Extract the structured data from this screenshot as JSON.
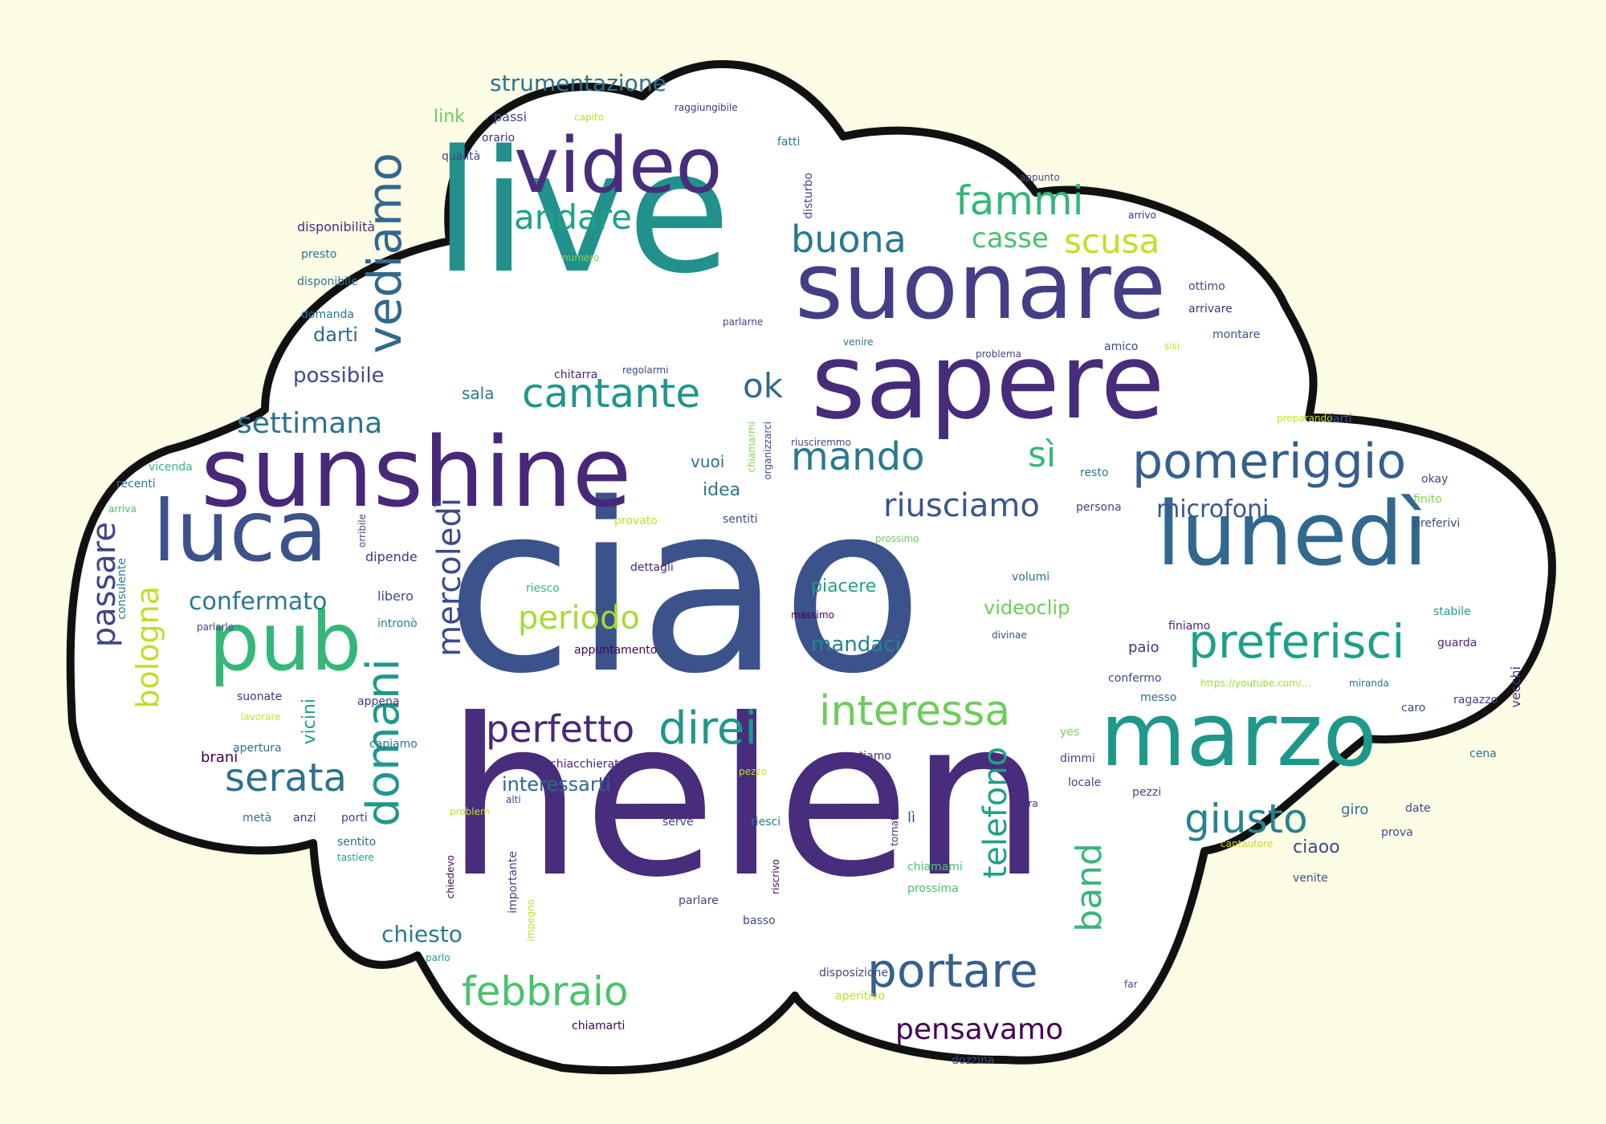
{
  "palette": {
    "background": "#fdfde6",
    "cloud_fill": "#ffffff",
    "cloud_outline": "#111111",
    "viridis_dark": "#46337e",
    "viridis_blue": "#365c8d",
    "viridis_teal": "#277f8e",
    "viridis_green": "#1fa187",
    "viridis_lightgreen": "#4ac16d",
    "viridis_lime": "#a0da39"
  },
  "words": [
    {
      "text": "ciao",
      "color": "#3b528b"
    },
    {
      "text": "helen",
      "color": "#472d7b"
    },
    {
      "text": "live",
      "color": "#21918c"
    },
    {
      "text": "sunshine",
      "color": "#482878"
    },
    {
      "text": "sapere",
      "color": "#472c7a"
    },
    {
      "text": "suonare",
      "color": "#433e85"
    },
    {
      "text": "marzo",
      "color": "#1f988b"
    },
    {
      "text": "lunedì",
      "color": "#31688e"
    },
    {
      "text": "luca",
      "color": "#3b528b"
    },
    {
      "text": "pub",
      "color": "#35b779"
    },
    {
      "text": "video",
      "color": "#472d7b"
    },
    {
      "text": "vediamo",
      "color": "#31688e"
    },
    {
      "text": "pomeriggio",
      "color": "#355f8d"
    },
    {
      "text": "preferisci",
      "color": "#1f9e89"
    },
    {
      "text": "domani",
      "color": "#1f988b"
    },
    {
      "text": "portare",
      "color": "#355f8d"
    },
    {
      "text": "direi",
      "color": "#1f988b"
    },
    {
      "text": "interessa",
      "color": "#6ccd5a"
    },
    {
      "text": "cantante",
      "color": "#1f968b"
    },
    {
      "text": "mando",
      "color": "#2a788e"
    },
    {
      "text": "fammi",
      "color": "#35b779"
    },
    {
      "text": "buona",
      "color": "#2a788e"
    },
    {
      "text": "andare",
      "color": "#1fa187"
    },
    {
      "text": "scusa",
      "color": "#c2df23"
    },
    {
      "text": "casse",
      "color": "#4ac16d"
    },
    {
      "text": "ok",
      "color": "#31688e"
    },
    {
      "text": "sì",
      "color": "#35b779"
    },
    {
      "text": "riusciamo",
      "color": "#39568c"
    },
    {
      "text": "microfoni",
      "color": "#39568c"
    },
    {
      "text": "settimana",
      "color": "#2c728e"
    },
    {
      "text": "periodo",
      "color": "#a5db36"
    },
    {
      "text": "confermato",
      "color": "#2a788e"
    },
    {
      "text": "passare",
      "color": "#414487"
    },
    {
      "text": "bologna",
      "color": "#bddf26"
    },
    {
      "text": "mercoledì",
      "color": "#3e4a89"
    },
    {
      "text": "serata",
      "color": "#2c728e"
    },
    {
      "text": "perfetto",
      "color": "#482878"
    },
    {
      "text": "giusto",
      "color": "#25848e"
    },
    {
      "text": "febbraio",
      "color": "#4ac16d"
    },
    {
      "text": "pensavamo",
      "color": "#440154"
    },
    {
      "text": "band",
      "color": "#35b779"
    },
    {
      "text": "telefono",
      "color": "#1fa187"
    },
    {
      "text": "strumentazione",
      "color": "#2c728e"
    },
    {
      "text": "possibile",
      "color": "#3e4a89"
    },
    {
      "text": "darti",
      "color": "#31688e"
    },
    {
      "text": "mandaci",
      "color": "#25848e"
    },
    {
      "text": "videoclip",
      "color": "#6ccd5a"
    },
    {
      "text": "piacere",
      "color": "#1fa187"
    },
    {
      "text": "chiesto",
      "color": "#2a788e"
    },
    {
      "text": "interessarti",
      "color": "#31688e"
    },
    {
      "text": "idea",
      "color": "#2a788e"
    },
    {
      "text": "vuoi",
      "color": "#2c728e"
    },
    {
      "text": "sala",
      "color": "#2a788e"
    },
    {
      "text": "link",
      "color": "#6ccd5a"
    },
    {
      "text": "passi",
      "color": "#414487"
    },
    {
      "text": "capito",
      "color": "#c2df23"
    },
    {
      "text": "raggiungibile",
      "color": "#46327e"
    },
    {
      "text": "orario",
      "color": "#472d7b"
    },
    {
      "text": "qualità",
      "color": "#404688"
    },
    {
      "text": "fatti",
      "color": "#2a788e"
    },
    {
      "text": "disturbo",
      "color": "#414487"
    },
    {
      "text": "appunto",
      "color": "#3e4a89"
    },
    {
      "text": "arrivo",
      "color": "#482878"
    },
    {
      "text": "vecchi",
      "color": "#46337e"
    },
    {
      "text": "disponibilità",
      "color": "#472d7b"
    },
    {
      "text": "presto",
      "color": "#2c728e"
    },
    {
      "text": "numero",
      "color": "#84d44b"
    },
    {
      "text": "ottimo",
      "color": "#414487"
    },
    {
      "text": "arrivare",
      "color": "#472d7b"
    },
    {
      "text": "disponibile",
      "color": "#2a788e"
    },
    {
      "text": "domanda",
      "color": "#2c728e"
    },
    {
      "text": "parlarne",
      "color": "#414487"
    },
    {
      "text": "venire",
      "color": "#2c728e"
    },
    {
      "text": "amico",
      "color": "#3e4a89"
    },
    {
      "text": "sisi",
      "color": "#c8e020"
    },
    {
      "text": "montare",
      "color": "#3b528b"
    },
    {
      "text": "problema",
      "color": "#414487"
    },
    {
      "text": "chitarra",
      "color": "#482878"
    },
    {
      "text": "regolarmi",
      "color": "#3e4a89"
    },
    {
      "text": "preparando",
      "color": "#c8e020"
    },
    {
      "text": "farti",
      "color": "#3b528b"
    },
    {
      "text": "vicenda",
      "color": "#35b779"
    },
    {
      "text": "recenti",
      "color": "#2c728e"
    },
    {
      "text": "chiamarmi",
      "color": "#84d44b"
    },
    {
      "text": "organizzarci",
      "color": "#404688"
    },
    {
      "text": "riusciremmo",
      "color": "#3e4a89"
    },
    {
      "text": "resto",
      "color": "#2a788e"
    },
    {
      "text": "okay",
      "color": "#414487"
    },
    {
      "text": "arriva",
      "color": "#4ac16d"
    },
    {
      "text": "orribile",
      "color": "#3e4a89"
    },
    {
      "text": "provato",
      "color": "#c2df23"
    },
    {
      "text": "sentiti",
      "color": "#3e4a89"
    },
    {
      "text": "persona",
      "color": "#404688"
    },
    {
      "text": "finito",
      "color": "#84d44b"
    },
    {
      "text": "preferivi",
      "color": "#3e4a89"
    },
    {
      "text": "prossimo",
      "color": "#6ccd5a"
    },
    {
      "text": "consulente",
      "color": "#2a788e"
    },
    {
      "text": "dipende",
      "color": "#46337e"
    },
    {
      "text": "dettagli",
      "color": "#482878"
    },
    {
      "text": "riesco",
      "color": "#35b779"
    },
    {
      "text": "volumi",
      "color": "#2c728e"
    },
    {
      "text": "libero",
      "color": "#3e4a89"
    },
    {
      "text": "massimo",
      "color": "#440154"
    },
    {
      "text": "parlarle",
      "color": "#414487"
    },
    {
      "text": "intronò",
      "color": "#2a788e"
    },
    {
      "text": "appuntamento",
      "color": "#440154"
    },
    {
      "text": "divinae",
      "color": "#3e4a89"
    },
    {
      "text": "finiamo",
      "color": "#482878"
    },
    {
      "text": "stabile",
      "color": "#1fa187"
    },
    {
      "text": "guarda",
      "color": "#482878"
    },
    {
      "text": "paio",
      "color": "#46337e"
    },
    {
      "text": "confermo",
      "color": "#3e4a89"
    },
    {
      "text": "https://youtube.com/…",
      "color": "#a0da39"
    },
    {
      "text": "miranda",
      "color": "#2c728e"
    },
    {
      "text": "suonate",
      "color": "#46337e"
    },
    {
      "text": "appena",
      "color": "#46337e"
    },
    {
      "text": "vicini",
      "color": "#1fa187"
    },
    {
      "text": "messo",
      "color": "#2c728e"
    },
    {
      "text": "ragazzo",
      "color": "#414487"
    },
    {
      "text": "caro",
      "color": "#3e4a89"
    },
    {
      "text": "lavorare",
      "color": "#c2df23"
    },
    {
      "text": "apertura",
      "color": "#2c728e"
    },
    {
      "text": "capiamo",
      "color": "#2c728e"
    },
    {
      "text": "yes",
      "color": "#84d44b"
    },
    {
      "text": "brani",
      "color": "#440154"
    },
    {
      "text": "chiacchierata",
      "color": "#482878"
    },
    {
      "text": "sentiamo",
      "color": "#472d7b"
    },
    {
      "text": "dimmi",
      "color": "#414487"
    },
    {
      "text": "cena",
      "color": "#2c728e"
    },
    {
      "text": "pezzo",
      "color": "#c2df23"
    },
    {
      "text": "locale",
      "color": "#414487"
    },
    {
      "text": "alti",
      "color": "#414487"
    },
    {
      "text": "altra",
      "color": "#472d7b"
    },
    {
      "text": "pezzi",
      "color": "#414487"
    },
    {
      "text": "giro",
      "color": "#2c728e"
    },
    {
      "text": "date",
      "color": "#414487"
    },
    {
      "text": "metà",
      "color": "#2c728e"
    },
    {
      "text": "anzi",
      "color": "#472d7b"
    },
    {
      "text": "porti",
      "color": "#414487"
    },
    {
      "text": "serve",
      "color": "#414487"
    },
    {
      "text": "riesci",
      "color": "#2a788e"
    },
    {
      "text": "lì",
      "color": "#3b528b"
    },
    {
      "text": "prova",
      "color": "#3e4a89"
    },
    {
      "text": "sentito",
      "color": "#2c728e"
    },
    {
      "text": "tornato",
      "color": "#482878"
    },
    {
      "text": "cantautore",
      "color": "#c2df23"
    },
    {
      "text": "ciaoo",
      "color": "#414487"
    },
    {
      "text": "tastiere",
      "color": "#1fa187"
    },
    {
      "text": "chiedevo",
      "color": "#440154"
    },
    {
      "text": "importante",
      "color": "#414487"
    },
    {
      "text": "riscrivo",
      "color": "#440154"
    },
    {
      "text": "chiamami",
      "color": "#4ac16d"
    },
    {
      "text": "venite",
      "color": "#3e4a89"
    },
    {
      "text": "parlare",
      "color": "#414487"
    },
    {
      "text": "prossima",
      "color": "#4ac16d"
    },
    {
      "text": "impegno",
      "color": "#c2df23"
    },
    {
      "text": "basso",
      "color": "#3e4a89"
    },
    {
      "text": "parlo",
      "color": "#1fa187"
    },
    {
      "text": "disposizione",
      "color": "#414487"
    },
    {
      "text": "aperitivo",
      "color": "#c2df23"
    },
    {
      "text": "far",
      "color": "#3e4a89"
    },
    {
      "text": "chiamarti",
      "color": "#440154"
    },
    {
      "text": "dozzina",
      "color": "#414487"
    },
    {
      "text": "problem",
      "color": "#c2df23"
    }
  ]
}
